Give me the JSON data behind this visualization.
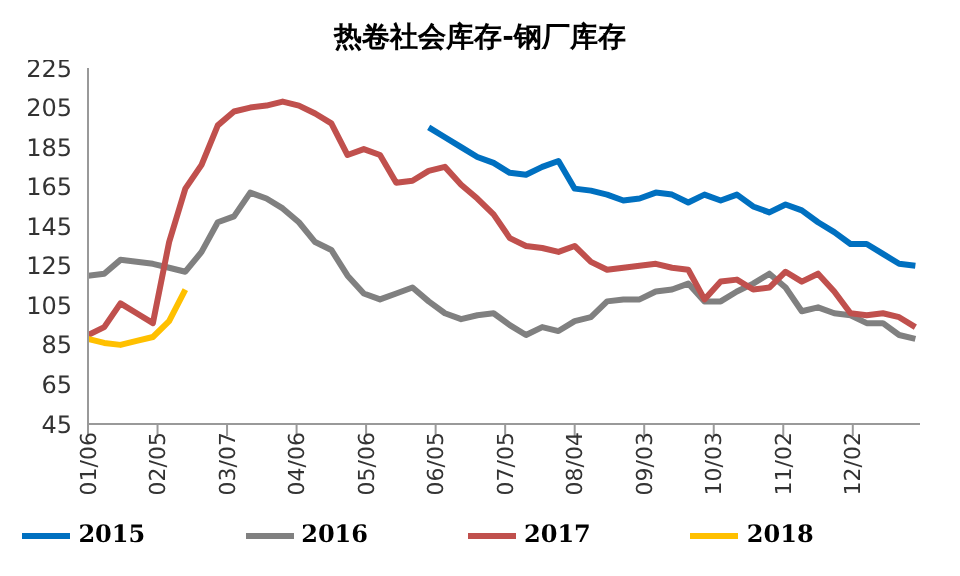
{
  "chart_data": {
    "type": "line",
    "title": "热卷社会库存-钢厂库存",
    "x": [
      "--01-06",
      "--01-13",
      "--01-20",
      "--01-27",
      "--02-03",
      "--02-10",
      "--02-17",
      "--02-24",
      "--03-03",
      "--03-10",
      "--03-17",
      "--03-24",
      "--03-31",
      "--04-07",
      "--04-14",
      "--04-21",
      "--04-28",
      "--05-05",
      "--05-12",
      "--05-19",
      "--05-26",
      "--06-02",
      "--06-09",
      "--06-16",
      "--06-23",
      "--06-30",
      "--07-07",
      "--07-14",
      "--07-21",
      "--07-28",
      "--08-04",
      "--08-11",
      "--08-18",
      "--08-25",
      "--09-01",
      "--09-08",
      "--09-15",
      "--09-22",
      "--09-29",
      "--10-06",
      "--10-13",
      "--10-20",
      "--10-27",
      "--11-03",
      "--11-10",
      "--11-17",
      "--11-24",
      "--12-01",
      "--12-08",
      "--12-15",
      "--12-22",
      "--12-29"
    ],
    "series": [
      {
        "name": "2015",
        "color": "#0070c0",
        "values": [
          null,
          null,
          null,
          null,
          null,
          null,
          null,
          null,
          null,
          null,
          null,
          null,
          null,
          null,
          null,
          null,
          null,
          null,
          null,
          null,
          null,
          195,
          190,
          185,
          180,
          177,
          172,
          171,
          175,
          178,
          164,
          163,
          161,
          158,
          159,
          162,
          161,
          157,
          161,
          158,
          161,
          155,
          152,
          156,
          153,
          147,
          142,
          136,
          136,
          131,
          126,
          125
        ]
      },
      {
        "name": "2016",
        "color": "#808080",
        "values": [
          120,
          121,
          128,
          127,
          126,
          124,
          122,
          132,
          147,
          150,
          162,
          159,
          154,
          147,
          137,
          133,
          120,
          111,
          108,
          111,
          114,
          107,
          101,
          98,
          100,
          101,
          95,
          90,
          94,
          92,
          97,
          99,
          107,
          108,
          108,
          112,
          113,
          116,
          107,
          107,
          112,
          116,
          121,
          114,
          102,
          104,
          101,
          100,
          96,
          96,
          90,
          88
        ]
      },
      {
        "name": "2017",
        "color": "#c0504d",
        "values": [
          90,
          94,
          106,
          101,
          96,
          137,
          164,
          176,
          196,
          203,
          205,
          206,
          208,
          206,
          202,
          197,
          181,
          184,
          181,
          167,
          168,
          173,
          175,
          166,
          159,
          151,
          139,
          135,
          134,
          132,
          135,
          127,
          123,
          124,
          125,
          126,
          124,
          123,
          108,
          117,
          118,
          113,
          114,
          122,
          117,
          121,
          112,
          101,
          100,
          101,
          99,
          94
        ]
      },
      {
        "name": "2018",
        "color": "#ffc000",
        "values": [
          88,
          86,
          85,
          87,
          89,
          97,
          113,
          null,
          null,
          null,
          null,
          null,
          null,
          null,
          null,
          null,
          null,
          null,
          null,
          null,
          null,
          null,
          null,
          null,
          null,
          null,
          null,
          null,
          null,
          null,
          null,
          null,
          null,
          null,
          null,
          null,
          null,
          null,
          null,
          null,
          null,
          null,
          null,
          null,
          null,
          null,
          null,
          null,
          null,
          null,
          null,
          null
        ]
      }
    ],
    "xlim": [
      "--01-06",
      "--12-31"
    ],
    "xticks": [
      {
        "value": "--01-06",
        "label": "01/06"
      },
      {
        "value": "--02-05",
        "label": "02/05"
      },
      {
        "value": "--03-07",
        "label": "03/07"
      },
      {
        "value": "--04-06",
        "label": "04/06"
      },
      {
        "value": "--05-06",
        "label": "05/06"
      },
      {
        "value": "--06-05",
        "label": "06/05"
      },
      {
        "value": "--07-05",
        "label": "07/05"
      },
      {
        "value": "--08-04",
        "label": "08/04"
      },
      {
        "value": "--09-03",
        "label": "09/03"
      },
      {
        "value": "--10-03",
        "label": "10/03"
      },
      {
        "value": "--11-02",
        "label": "11/02"
      },
      {
        "value": "--12-02",
        "label": "12/02"
      }
    ],
    "ylim": [
      45,
      225
    ],
    "yticks": [
      45,
      65,
      85,
      105,
      125,
      145,
      165,
      185,
      205,
      225
    ],
    "grid": false,
    "legend": "bottom",
    "marker": "none",
    "line_style": "solid"
  }
}
